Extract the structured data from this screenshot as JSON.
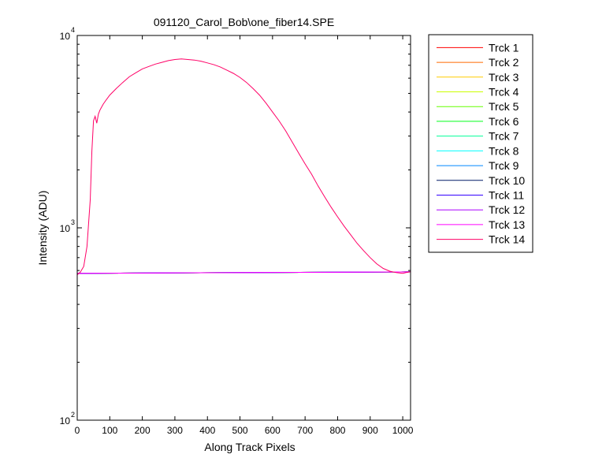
{
  "chart_data": {
    "type": "line",
    "title": "091120_Carol_Bob\\one_fiber14.SPE",
    "xlabel": "Along Track Pixels",
    "ylabel": "Intensity (ADU)",
    "xlim": [
      0,
      1024
    ],
    "ylim": [
      100,
      10000
    ],
    "yscale": "log",
    "x_ticks": [
      0,
      100,
      200,
      300,
      400,
      500,
      600,
      700,
      800,
      900,
      1000
    ],
    "x_tick_labels": [
      "0",
      "100",
      "200",
      "300",
      "400",
      "500",
      "600",
      "700",
      "800",
      "900",
      "1000"
    ],
    "y_ticks": [
      {
        "value": 100,
        "base": "10",
        "exp": "2"
      },
      {
        "value": 1000,
        "base": "10",
        "exp": "3"
      },
      {
        "value": 10000,
        "base": "10",
        "exp": "4"
      }
    ],
    "grid": false,
    "legend_position": "outside-right",
    "series": [
      {
        "name": "Trck 1",
        "color": "#ff0000",
        "x": [
          0,
          1024
        ],
        "y": [
          580,
          590
        ]
      },
      {
        "name": "Trck 2",
        "color": "#ff6a00",
        "x": [
          0,
          1024
        ],
        "y": [
          580,
          590
        ]
      },
      {
        "name": "Trck 3",
        "color": "#ffcc00",
        "x": [
          0,
          1024
        ],
        "y": [
          580,
          590
        ]
      },
      {
        "name": "Trck 4",
        "color": "#ccff00",
        "x": [
          0,
          1024
        ],
        "y": [
          580,
          590
        ]
      },
      {
        "name": "Trck 5",
        "color": "#66ff00",
        "x": [
          0,
          1024
        ],
        "y": [
          580,
          590
        ]
      },
      {
        "name": "Trck 6",
        "color": "#00ff1a",
        "x": [
          0,
          1024
        ],
        "y": [
          580,
          590
        ]
      },
      {
        "name": "Trck 7",
        "color": "#00ff99",
        "x": [
          0,
          1024
        ],
        "y": [
          580,
          590
        ]
      },
      {
        "name": "Trck 8",
        "color": "#00ffff",
        "x": [
          0,
          1024
        ],
        "y": [
          580,
          590
        ]
      },
      {
        "name": "Trck 9",
        "color": "#0088ff",
        "x": [
          0,
          1024
        ],
        "y": [
          580,
          590
        ]
      },
      {
        "name": "Trck 10",
        "color": "#001a66",
        "x": [
          0,
          1024
        ],
        "y": [
          580,
          590
        ]
      },
      {
        "name": "Trck 11",
        "color": "#3300ff",
        "x": [
          0,
          1024
        ],
        "y": [
          580,
          590
        ]
      },
      {
        "name": "Trck 12",
        "color": "#aa00ff",
        "x": [
          0,
          1024
        ],
        "y": [
          580,
          590
        ]
      },
      {
        "name": "Trck 13",
        "color": "#ff00ff",
        "x": [
          0,
          1024
        ],
        "y": [
          580,
          590
        ]
      },
      {
        "name": "Trck 14",
        "color": "#ff0066",
        "x": [
          0,
          10,
          20,
          30,
          40,
          45,
          50,
          55,
          60,
          65,
          70,
          80,
          90,
          100,
          120,
          140,
          160,
          180,
          200,
          220,
          240,
          260,
          280,
          300,
          320,
          340,
          360,
          380,
          400,
          420,
          440,
          460,
          480,
          500,
          520,
          540,
          560,
          580,
          600,
          620,
          640,
          660,
          680,
          700,
          720,
          740,
          760,
          780,
          800,
          820,
          840,
          860,
          880,
          900,
          920,
          940,
          960,
          980,
          1000,
          1010,
          1024
        ],
        "y": [
          570,
          590,
          630,
          800,
          1400,
          2500,
          3600,
          3800,
          3500,
          3900,
          4100,
          4400,
          4650,
          4900,
          5300,
          5700,
          6100,
          6400,
          6700,
          6900,
          7100,
          7250,
          7400,
          7500,
          7550,
          7500,
          7450,
          7350,
          7200,
          7050,
          6850,
          6600,
          6350,
          6050,
          5700,
          5300,
          4900,
          4450,
          4000,
          3600,
          3200,
          2800,
          2450,
          2150,
          1900,
          1650,
          1450,
          1280,
          1140,
          1020,
          920,
          830,
          760,
          700,
          650,
          615,
          595,
          585,
          580,
          585,
          590
        ]
      }
    ]
  }
}
